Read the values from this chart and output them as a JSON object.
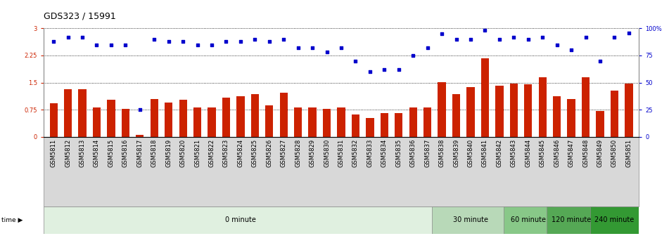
{
  "title": "GDS323 / 15991",
  "samples": [
    "GSM5811",
    "GSM5812",
    "GSM5813",
    "GSM5814",
    "GSM5815",
    "GSM5816",
    "GSM5817",
    "GSM5818",
    "GSM5819",
    "GSM5820",
    "GSM5821",
    "GSM5822",
    "GSM5823",
    "GSM5824",
    "GSM5825",
    "GSM5826",
    "GSM5827",
    "GSM5828",
    "GSM5829",
    "GSM5830",
    "GSM5831",
    "GSM5832",
    "GSM5833",
    "GSM5834",
    "GSM5835",
    "GSM5836",
    "GSM5837",
    "GSM5838",
    "GSM5839",
    "GSM5840",
    "GSM5841",
    "GSM5842",
    "GSM5843",
    "GSM5844",
    "GSM5845",
    "GSM5846",
    "GSM5847",
    "GSM5848",
    "GSM5849",
    "GSM5850",
    "GSM5851"
  ],
  "log_ratio": [
    0.92,
    1.32,
    1.32,
    0.82,
    1.02,
    0.78,
    0.05,
    1.05,
    0.95,
    1.02,
    0.82,
    0.82,
    1.08,
    1.12,
    1.18,
    0.88,
    1.22,
    0.82,
    0.82,
    0.78,
    0.82,
    0.62,
    0.52,
    0.65,
    0.65,
    0.82,
    0.82,
    1.52,
    1.18,
    1.38,
    2.18,
    1.42,
    1.48,
    1.45,
    1.65,
    1.12,
    1.05,
    1.65,
    0.72,
    1.28,
    1.48
  ],
  "percentile": [
    88,
    92,
    92,
    85,
    85,
    85,
    25,
    90,
    88,
    88,
    85,
    85,
    88,
    88,
    90,
    88,
    90,
    82,
    82,
    78,
    82,
    70,
    60,
    62,
    62,
    75,
    82,
    95,
    90,
    90,
    98,
    90,
    92,
    90,
    92,
    85,
    80,
    92,
    70,
    92,
    96
  ],
  "time_groups": [
    {
      "label": "0 minute",
      "start": 0,
      "end": 27,
      "color": "#e0f0e0"
    },
    {
      "label": "30 minute",
      "start": 27,
      "end": 32,
      "color": "#b8d9b8"
    },
    {
      "label": "60 minute",
      "start": 32,
      "end": 35,
      "color": "#88c888"
    },
    {
      "label": "120 minute",
      "start": 35,
      "end": 38,
      "color": "#55a855"
    },
    {
      "label": "240 minute",
      "start": 38,
      "end": 41,
      "color": "#339933"
    }
  ],
  "bar_color": "#cc2200",
  "dot_color": "#0000cc",
  "yticks_left": [
    0,
    0.75,
    1.5,
    2.25,
    3.0
  ],
  "yticks_right": [
    0,
    25,
    50,
    75,
    100
  ],
  "ylim_left": [
    0,
    3.0
  ],
  "ylim_right": [
    0,
    100
  ],
  "label_bg_color": "#d8d8d8",
  "background_color": "#ffffff",
  "title_fontsize": 9,
  "tick_fontsize": 6,
  "time_fontsize": 7,
  "legend_fontsize": 7
}
